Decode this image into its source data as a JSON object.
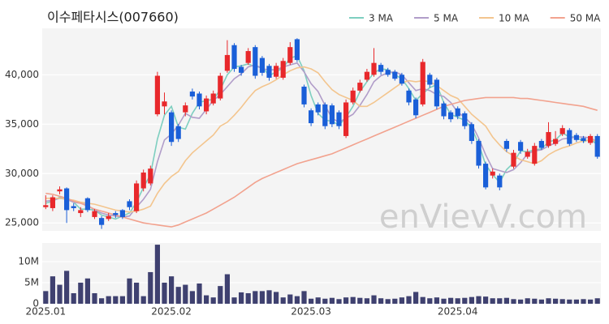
{
  "chart_data": [
    {
      "type": "candlestick",
      "title": "이수페타시스(007660)",
      "watermark": "enVievV.com",
      "up_color": "#e8282b",
      "down_color": "#1a5fd8",
      "grid": true,
      "legend": "top-right",
      "ylim": [
        24200,
        44700
      ],
      "yticks": [
        {
          "value": 25000,
          "label": "25,000"
        },
        {
          "value": 30000,
          "label": "30,000"
        },
        {
          "value": 35000,
          "label": "35,000"
        },
        {
          "value": 40000,
          "label": "40,000"
        }
      ],
      "open": [
        26600,
        26500,
        28200,
        28500,
        26700,
        26000,
        27500,
        25600,
        25500,
        25400,
        26000,
        26300,
        27200,
        26200,
        28500,
        29000,
        36000,
        36800,
        36200,
        34800,
        36200,
        38300,
        38100,
        36300,
        37100,
        37600,
        40400,
        43000,
        40800,
        41200,
        42800,
        41700,
        40900,
        39800,
        39700,
        41200,
        43600,
        38800,
        36400,
        37000,
        37000,
        36900,
        36200,
        33800,
        37200,
        38400,
        39500,
        40000,
        41000,
        40500,
        40300,
        40000,
        38400,
        37500,
        37000,
        40000,
        39500,
        37100,
        36200,
        36600,
        36100,
        35000,
        33300,
        31000,
        29800,
        29800,
        33300,
        30700,
        33200,
        31700,
        31000,
        33300,
        32800,
        33000,
        34000,
        34400,
        33900,
        33600,
        33100,
        33800
      ],
      "high": [
        27800,
        27800,
        28700,
        28600,
        27000,
        26600,
        27600,
        26400,
        25700,
        26000,
        26200,
        26400,
        27400,
        29300,
        30400,
        30800,
        40300,
        38200,
        36400,
        35000,
        37200,
        38600,
        38300,
        37900,
        38400,
        40200,
        43500,
        43200,
        41000,
        42700,
        43000,
        41900,
        41100,
        41200,
        41700,
        43300,
        43700,
        39000,
        36600,
        37200,
        37200,
        37100,
        36400,
        37500,
        38700,
        39500,
        40600,
        42700,
        41200,
        40700,
        40500,
        40200,
        38600,
        37700,
        41600,
        40200,
        39700,
        37300,
        36400,
        36800,
        36300,
        35200,
        33500,
        31200,
        30500,
        30000,
        33500,
        32400,
        33400,
        32500,
        33100,
        33500,
        35200,
        34300,
        34900,
        34600,
        34100,
        33800,
        34000,
        34000
      ],
      "low": [
        26400,
        26200,
        27900,
        25000,
        26200,
        25600,
        26100,
        25400,
        24400,
        25200,
        25500,
        25400,
        26300,
        26000,
        28200,
        28800,
        35800,
        36000,
        32800,
        33200,
        35800,
        37500,
        36500,
        36000,
        36900,
        37400,
        40200,
        40300,
        39900,
        41000,
        39600,
        39900,
        39400,
        39600,
        39500,
        41000,
        41300,
        36700,
        34800,
        35900,
        34500,
        34700,
        34500,
        33600,
        37000,
        38200,
        39300,
        39800,
        40000,
        39800,
        39400,
        38900,
        36900,
        35600,
        36800,
        38700,
        36500,
        35500,
        35200,
        35500,
        34500,
        33000,
        30500,
        28400,
        29500,
        28300,
        32200,
        30500,
        32000,
        31500,
        30800,
        32400,
        32600,
        32800,
        33800,
        32800,
        33200,
        33100,
        32900,
        31500
      ],
      "close": [
        26800,
        27600,
        28400,
        26300,
        26500,
        26300,
        26300,
        26200,
        24800,
        25700,
        25800,
        25600,
        26600,
        29000,
        30100,
        30500,
        39900,
        37300,
        33200,
        33500,
        36900,
        37800,
        36800,
        37600,
        38100,
        39900,
        42000,
        40600,
        40200,
        42400,
        39900,
        40200,
        39700,
        40900,
        41400,
        42800,
        41500,
        37000,
        35100,
        36200,
        34800,
        35000,
        34800,
        37200,
        38400,
        39200,
        40300,
        41200,
        40300,
        40000,
        39600,
        39100,
        37200,
        35900,
        41300,
        39000,
        36800,
        35800,
        35500,
        35800,
        34800,
        33300,
        30800,
        28600,
        30200,
        28600,
        32500,
        32100,
        32300,
        32200,
        32800,
        32600,
        34200,
        33500,
        34600,
        33000,
        33400,
        33300,
        33800,
        31700
      ],
      "series": [
        {
          "name": "3 MA",
          "color": "#7ecfc0",
          "values": [
            27000,
            27200,
            27600,
            27400,
            27100,
            26400,
            26400,
            26300,
            25800,
            25600,
            25400,
            25700,
            26000,
            27100,
            28600,
            29900,
            33500,
            35900,
            36800,
            34700,
            34500,
            36100,
            37200,
            37400,
            37500,
            38500,
            40000,
            40800,
            40900,
            41100,
            40800,
            40800,
            39900,
            40300,
            40700,
            41700,
            41900,
            40400,
            37900,
            36100,
            35400,
            35300,
            34900,
            35700,
            36800,
            38300,
            39300,
            40200,
            40600,
            40500,
            40000,
            39600,
            38600,
            37400,
            38100,
            38700,
            39000,
            37200,
            36000,
            35700,
            35400,
            34600,
            33000,
            30900,
            29900,
            29100,
            30400,
            31100,
            32300,
            32200,
            32400,
            32500,
            33200,
            33400,
            34100,
            33700,
            33700,
            33200,
            33500,
            32900
          ]
        },
        {
          "name": "5 MA",
          "color": "#b19dc9",
          "values": [
            27200,
            27300,
            27500,
            27400,
            27100,
            27000,
            26800,
            26300,
            26000,
            25800,
            25700,
            25600,
            25700,
            26600,
            27400,
            28400,
            31200,
            33400,
            34000,
            34900,
            36100,
            35700,
            35600,
            36500,
            37400,
            38000,
            38800,
            39600,
            40100,
            40800,
            41000,
            40600,
            40500,
            40500,
            40800,
            41000,
            41200,
            40300,
            39100,
            38300,
            36900,
            35600,
            35200,
            35600,
            36000,
            36900,
            38000,
            39300,
            39900,
            40200,
            40300,
            40000,
            39200,
            38400,
            38600,
            38400,
            38000,
            37800,
            37200,
            36200,
            35700,
            35000,
            33600,
            31900,
            30500,
            30300,
            30100,
            30400,
            31100,
            32000,
            32300,
            32400,
            32800,
            33100,
            33500,
            33600,
            33700,
            33700,
            33600,
            33200
          ]
        },
        {
          "name": "10 MA",
          "color": "#f3c58e",
          "values": [
            27500,
            27500,
            27500,
            27400,
            27300,
            27100,
            27000,
            26900,
            26700,
            26500,
            26300,
            26200,
            26100,
            26200,
            26400,
            26700,
            28000,
            29000,
            29700,
            30200,
            31300,
            32100,
            32700,
            33300,
            33900,
            34800,
            35200,
            35900,
            36700,
            37600,
            38400,
            38800,
            39100,
            39500,
            40000,
            40400,
            40700,
            40800,
            40600,
            40200,
            39300,
            38500,
            38000,
            37700,
            37400,
            36800,
            36800,
            37200,
            37700,
            38200,
            38700,
            39200,
            39400,
            39300,
            39400,
            39300,
            38900,
            38400,
            37900,
            37600,
            36800,
            36000,
            35400,
            34800,
            33700,
            32900,
            32200,
            31800,
            31400,
            31200,
            31000,
            31300,
            31900,
            32300,
            32600,
            32800,
            33100,
            33300,
            33400,
            33300
          ]
        },
        {
          "name": "50 MA",
          "color": "#f2a28e",
          "values": [
            28000,
            27900,
            27700,
            27500,
            27200,
            27000,
            26700,
            26400,
            26200,
            26000,
            25800,
            25600,
            25400,
            25200,
            25000,
            24900,
            24800,
            24700,
            24600,
            24800,
            25100,
            25400,
            25700,
            26000,
            26400,
            26800,
            27200,
            27600,
            28100,
            28600,
            29100,
            29500,
            29800,
            30100,
            30400,
            30700,
            31000,
            31200,
            31400,
            31600,
            31800,
            32000,
            32300,
            32600,
            32900,
            33200,
            33500,
            33800,
            34100,
            34400,
            34700,
            35000,
            35300,
            35600,
            35900,
            36200,
            36500,
            36800,
            37000,
            37200,
            37400,
            37500,
            37600,
            37700,
            37700,
            37700,
            37700,
            37700,
            37600,
            37600,
            37500,
            37400,
            37300,
            37200,
            37100,
            37000,
            36900,
            36800,
            36600,
            36400
          ]
        }
      ]
    },
    {
      "type": "bar",
      "color": "#3f4170",
      "grid": true,
      "ylim": [
        0,
        14400000
      ],
      "yticks": [
        0,
        {
          "value": 5000000,
          "label": "5M"
        },
        {
          "value": 10000000,
          "label": "10M"
        }
      ],
      "categories": [
        "2025.01",
        null,
        null,
        null,
        null,
        null,
        null,
        null,
        null,
        null,
        null,
        null,
        null,
        null,
        null,
        null,
        null,
        null,
        "2025.02",
        null,
        null,
        null,
        null,
        null,
        null,
        null,
        null,
        null,
        null,
        null,
        null,
        null,
        null,
        null,
        null,
        null,
        null,
        null,
        "2025.03",
        null,
        null,
        null,
        null,
        null,
        null,
        null,
        null,
        null,
        null,
        null,
        null,
        null,
        null,
        null,
        null,
        null,
        null,
        null,
        null,
        "2025.04",
        null,
        null,
        null,
        null,
        null,
        null,
        null,
        null,
        null,
        null,
        null,
        null,
        null,
        null,
        null,
        null,
        null,
        null,
        null,
        null
      ],
      "values": [
        3000000,
        6500000,
        4500000,
        7800000,
        2500000,
        5000000,
        6000000,
        2500000,
        1300000,
        1800000,
        1800000,
        1800000,
        6000000,
        5000000,
        1800000,
        7500000,
        14000000,
        5000000,
        6500000,
        4000000,
        4500000,
        3000000,
        4800000,
        2000000,
        1500000,
        4200000,
        7000000,
        1500000,
        2700000,
        2500000,
        3000000,
        3000000,
        3200000,
        2800000,
        1500000,
        2200000,
        1800000,
        3000000,
        1200000,
        1500000,
        1200000,
        1400000,
        1100000,
        1500000,
        1600000,
        1400000,
        1300000,
        2000000,
        1300000,
        1100000,
        1200000,
        1500000,
        1800000,
        2800000,
        1600000,
        1300000,
        1500000,
        1200000,
        1400000,
        1300000,
        1400000,
        1600000,
        1800000,
        1700000,
        1300000,
        1300000,
        1400000,
        1100000,
        1000000,
        1300000,
        1200000,
        1000000,
        1300000,
        1200000,
        1100000,
        1000000,
        1000000,
        1100000,
        1000000,
        1300000
      ]
    }
  ]
}
